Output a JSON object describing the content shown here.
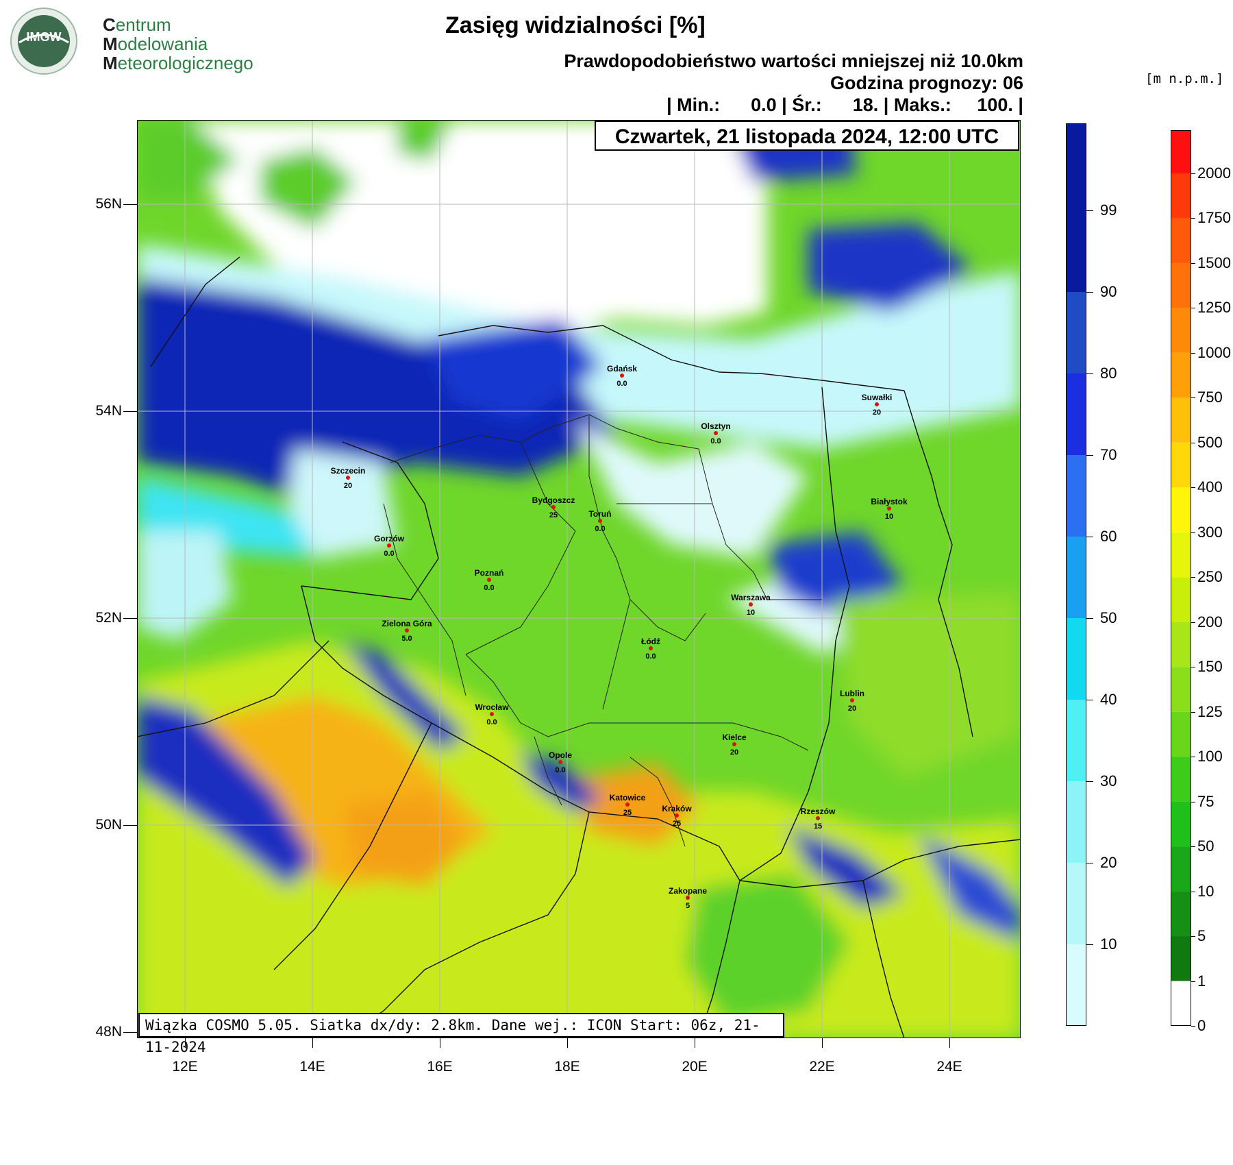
{
  "logo": {
    "badge": "IMGW",
    "line1_initial": "C",
    "line1_rest": "entrum",
    "line2_initial": "M",
    "line2_rest": "odelowania",
    "line3_initial": "M",
    "line3_rest": "eteorologicznego"
  },
  "header": {
    "title": "Zasięg widzialności [%]",
    "subtitle": "Prawdopodobieństwo wartości mniejszej niż 10.0km",
    "forecast_hour": "Godzina prognozy: 06",
    "stats": "| Min.:      0.0 | Śr.:      18. | Maks.:     100. |",
    "date": "Czwartek, 21 listopada 2024, 12:00 UTC",
    "unit": "[m  n.p.m.]"
  },
  "footer": {
    "info": "Wiązka COSMO 5.05. Siatka dx/dy: 2.8km. Dane wej.: ICON Start: 06z, 21-11-2024"
  },
  "axes": {
    "lat_labels": [
      "56N",
      "54N",
      "52N",
      "50N",
      "48N"
    ],
    "lon_labels": [
      "12E",
      "14E",
      "16E",
      "18E",
      "20E",
      "22E",
      "24E"
    ]
  },
  "colorbar_prob": {
    "labels": [
      "99",
      "90",
      "80",
      "70",
      "60",
      "50",
      "40",
      "30",
      "20",
      "10"
    ],
    "colors": [
      "#0a1a9e",
      "#1f4cc4",
      "#1b2fe0",
      "#2c6ff0",
      "#1aa0f0",
      "#12d8f0",
      "#4ef0f4",
      "#8cf4f7",
      "#b6f7fa",
      "#d8fbfd"
    ]
  },
  "colorbar_height": {
    "labels": [
      "2000",
      "1750",
      "1500",
      "1250",
      "1000",
      "750",
      "500",
      "400",
      "300",
      "250",
      "200",
      "150",
      "125",
      "100",
      "75",
      "50",
      "10",
      "5",
      "1",
      "0"
    ],
    "colors": [
      "#ff1010",
      "#ff3a0a",
      "#ff5a0a",
      "#ff720a",
      "#ff8a0a",
      "#ffa00a",
      "#ffc00a",
      "#ffd80a",
      "#fff50a",
      "#e6f50a",
      "#c8ee0a",
      "#a8e61a",
      "#8ade1a",
      "#6ad61a",
      "#3ecc1a",
      "#20c01a",
      "#1aa81a",
      "#159015",
      "#107a10",
      "#ffffff"
    ]
  },
  "cities": [
    {
      "name": "Gdańsk",
      "value": "0.0"
    },
    {
      "name": "Suwałki",
      "value": "20"
    },
    {
      "name": "Olsztyn",
      "value": "0.0"
    },
    {
      "name": "Szczecin",
      "value": "20"
    },
    {
      "name": "Bydgoszcz",
      "value": "25"
    },
    {
      "name": "Toruń",
      "value": "0.0"
    },
    {
      "name": "Białystok",
      "value": "10"
    },
    {
      "name": "Gorzów",
      "value": "0.0"
    },
    {
      "name": "Poznań",
      "value": "0.0"
    },
    {
      "name": "Warszawa",
      "value": "10"
    },
    {
      "name": "Zielona Góra",
      "value": "5.0"
    },
    {
      "name": "Łódź",
      "value": "0.0"
    },
    {
      "name": "Lublin",
      "value": "20"
    },
    {
      "name": "Wrocław",
      "value": "0.0"
    },
    {
      "name": "Kielce",
      "value": "20"
    },
    {
      "name": "Opole",
      "value": "0.0"
    },
    {
      "name": "Katowice",
      "value": "25"
    },
    {
      "name": "Kraków",
      "value": "25"
    },
    {
      "name": "Rzeszów",
      "value": "15"
    },
    {
      "name": "Zakopane",
      "value": "5"
    }
  ]
}
